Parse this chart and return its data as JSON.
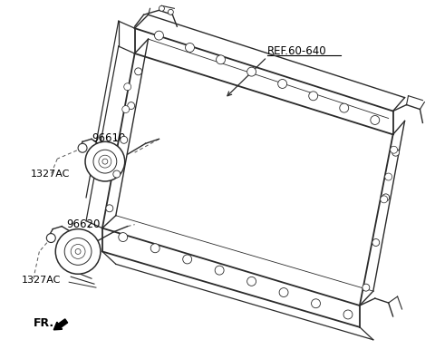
{
  "bg_color": "#ffffff",
  "fig_width": 4.8,
  "fig_height": 3.96,
  "dpi": 100,
  "labels": {
    "ref": "REF.60-640",
    "part1": "96610",
    "part2": "96620",
    "bolt1": "1327AC",
    "bolt2": "1327AC",
    "fr": "FR."
  },
  "frame_color": "#2a2a2a",
  "text_color": "#000000",
  "fontsize_label": 8.5,
  "fontsize_fr": 9,
  "fontsize_ref": 8.5
}
